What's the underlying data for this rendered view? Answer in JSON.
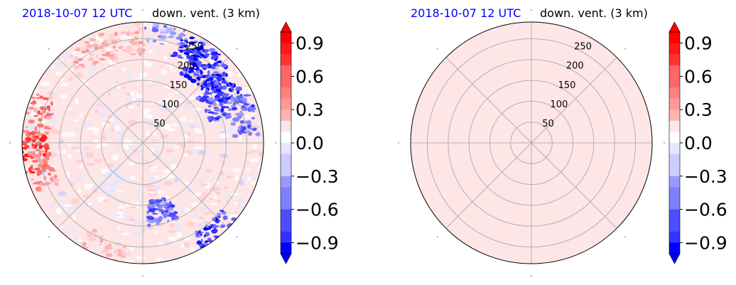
{
  "chart_data": [
    {
      "type": "heatmap",
      "projection": "polar",
      "title_left": "2018-10-07 12 UTC",
      "title_right": "down. vent. (3 km)",
      "r_ticks": [
        50,
        100,
        150,
        200,
        250
      ],
      "r_max": 290,
      "theta_gridlines_deg": [
        0,
        45,
        90,
        135,
        180,
        225,
        270,
        315
      ],
      "field_description": "noisy field mostly near 0; strong negative patches in NE sector, positive patches in N and W",
      "colorbar": {
        "cmap": "bwr",
        "min": -1.0,
        "max": 1.0,
        "levels_step": 0.1,
        "extend": "both",
        "ticks": [
          "0.9",
          "0.6",
          "0.3",
          "0.0",
          "−0.3",
          "−0.6",
          "−0.9"
        ],
        "tick_values": [
          0.9,
          0.6,
          0.3,
          0.0,
          -0.3,
          -0.6,
          -0.9
        ]
      },
      "features": [
        {
          "theta": 40,
          "r": 220,
          "value": -1.0
        },
        {
          "theta": 52,
          "r": 240,
          "value": -1.0
        },
        {
          "theta": 30,
          "r": 250,
          "value": -1.0
        },
        {
          "theta": 62,
          "r": 200,
          "value": -0.8
        },
        {
          "theta": 75,
          "r": 250,
          "value": -0.7
        },
        {
          "theta": 12,
          "r": 270,
          "value": -0.5
        },
        {
          "theta": 165,
          "r": 170,
          "value": -0.7
        },
        {
          "theta": 140,
          "r": 280,
          "value": -0.9
        },
        {
          "theta": 350,
          "r": 240,
          "value": 0.35
        },
        {
          "theta": 330,
          "r": 250,
          "value": 0.35
        },
        {
          "theta": 285,
          "r": 260,
          "value": 0.6
        },
        {
          "theta": 265,
          "r": 260,
          "value": 0.8
        },
        {
          "theta": 255,
          "r": 250,
          "value": 0.5
        },
        {
          "theta": 200,
          "r": 270,
          "value": 0.3
        },
        {
          "theta": 120,
          "r": 200,
          "value": 0.2
        },
        {
          "theta": 220,
          "r": 120,
          "value": -0.12
        }
      ]
    },
    {
      "type": "heatmap",
      "projection": "polar",
      "title_left": "2018-10-07 12 UTC",
      "title_right": "down. vent. (3 km)",
      "r_ticks": [
        50,
        100,
        150,
        200,
        250
      ],
      "r_max": 290,
      "theta_gridlines_deg": [
        0,
        45,
        90,
        135,
        180,
        225,
        270,
        315
      ],
      "field_description": "uniform value ~0.05 everywhere",
      "uniform_value": 0.05,
      "colorbar": {
        "cmap": "bwr",
        "min": -1.0,
        "max": 1.0,
        "levels_step": 0.1,
        "extend": "both",
        "ticks": [
          "0.9",
          "0.6",
          "0.3",
          "0.0",
          "−0.3",
          "−0.6",
          "−0.9"
        ],
        "tick_values": [
          0.9,
          0.6,
          0.3,
          0.0,
          -0.3,
          -0.6,
          -0.9
        ]
      }
    }
  ],
  "colors": {
    "grid": "#b0b0b0",
    "title_date": "#0000ff"
  }
}
